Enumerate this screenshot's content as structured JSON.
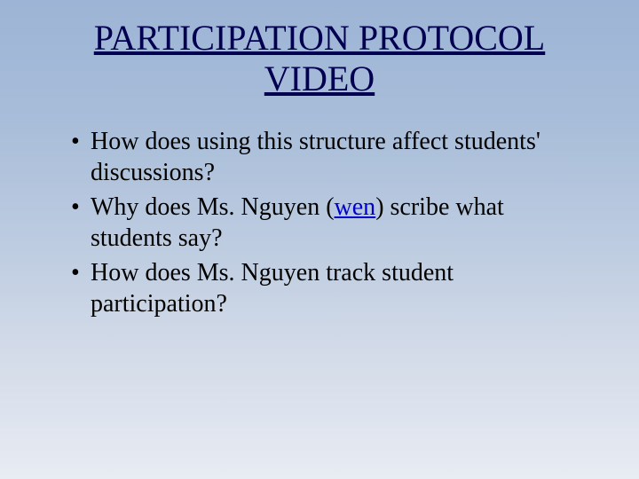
{
  "slide": {
    "title": "PARTICIPATION PROTOCOL VIDEO",
    "title_color": "#000050",
    "title_fontsize": 40,
    "bullets": [
      {
        "prefix": "How does using this structure affect students' discussions?",
        "link": "",
        "suffix": ""
      },
      {
        "prefix": "Why does Ms. Nguyen (",
        "link": "wen",
        "suffix": ") scribe what students say?"
      },
      {
        "prefix": "How does Ms. Nguyen track student participation?",
        "link": "",
        "suffix": ""
      }
    ],
    "bullet_fontsize": 28,
    "bullet_color": "#000000",
    "link_color": "#0000cc",
    "background_gradient": [
      "#9db4d6",
      "#a8bdd9",
      "#bccbe0",
      "#d4dce9",
      "#e8ecf3"
    ]
  }
}
